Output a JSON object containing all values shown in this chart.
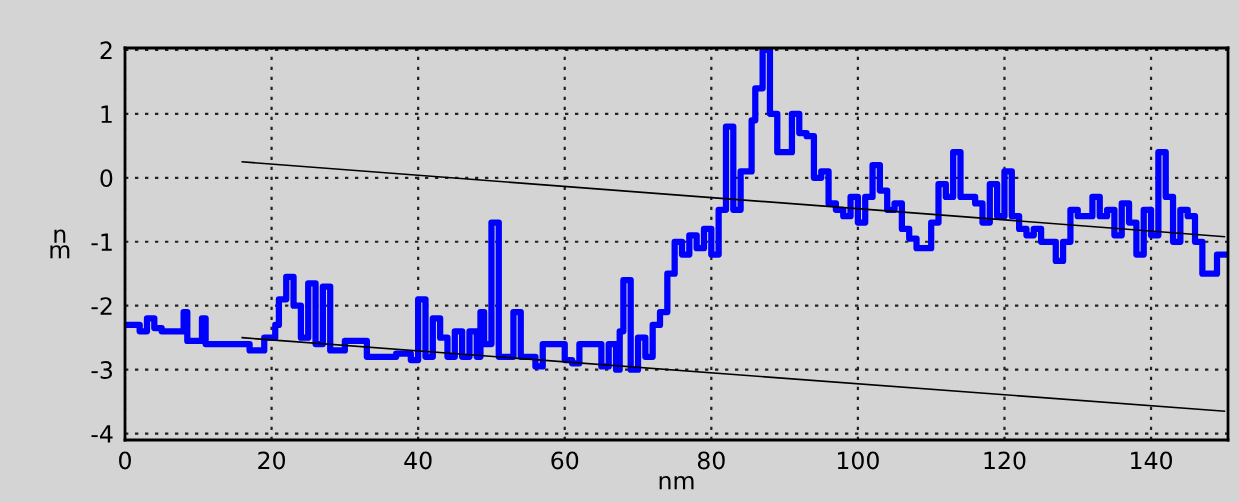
{
  "chart_data": {
    "type": "step",
    "xlabel": "nm",
    "ylabel": "nm",
    "xlim": [
      0,
      150.5
    ],
    "ylim": [
      -4.1,
      2.03
    ],
    "xticks": [
      0,
      20,
      40,
      60,
      80,
      100,
      120,
      140
    ],
    "yticks": [
      -4,
      -3,
      -2,
      -1,
      0,
      1,
      2
    ],
    "grid": true,
    "legend": false,
    "marker": "none",
    "series": [
      {
        "color": "#0000ff",
        "x": [
          0,
          2,
          3,
          4,
          5,
          7,
          8,
          8.5,
          9,
          10.5,
          11,
          12,
          15,
          17,
          19,
          20.5,
          21,
          22,
          23,
          24,
          25,
          26,
          27,
          28,
          30,
          33,
          37,
          39,
          40,
          41,
          42,
          43,
          44,
          45,
          46,
          47,
          48,
          48.5,
          49,
          50,
          51,
          52,
          53,
          54,
          56,
          57,
          59,
          60,
          61,
          62,
          64,
          65,
          66,
          67,
          67.5,
          68,
          69,
          70,
          71,
          72,
          73,
          74,
          75,
          76,
          77,
          78,
          79,
          80,
          81,
          82,
          83,
          84,
          85.5,
          86,
          87,
          88,
          89,
          90,
          91,
          92,
          93,
          94,
          95,
          96,
          97,
          98,
          99,
          100,
          101,
          102,
          103,
          104,
          105,
          106,
          107,
          108,
          110,
          111,
          112,
          113,
          114,
          116,
          117,
          118,
          119,
          120,
          121,
          122,
          123,
          124,
          125,
          127,
          128,
          129,
          130,
          132,
          133,
          134,
          135,
          136,
          137,
          138,
          139,
          140,
          141,
          142,
          143,
          144,
          145,
          146,
          147,
          148,
          149,
          150
        ],
        "values": [
          -2.3,
          -2.4,
          -2.2,
          -2.35,
          -2.4,
          -2.4,
          -2.1,
          -2.55,
          -2.55,
          -2.2,
          -2.6,
          -2.6,
          -2.6,
          -2.7,
          -2.5,
          -2.3,
          -1.9,
          -1.55,
          -2.0,
          -2.5,
          -1.65,
          -2.6,
          -1.7,
          -2.7,
          -2.55,
          -2.8,
          -2.75,
          -2.85,
          -1.9,
          -2.8,
          -2.2,
          -2.5,
          -2.8,
          -2.4,
          -2.8,
          -2.4,
          -2.8,
          -2.1,
          -2.6,
          -0.7,
          -2.8,
          -2.8,
          -2.1,
          -2.8,
          -2.95,
          -2.6,
          -2.6,
          -2.85,
          -2.9,
          -2.6,
          -2.6,
          -2.95,
          -2.6,
          -3.0,
          -2.4,
          -1.6,
          -3.0,
          -2.5,
          -2.8,
          -2.3,
          -2.1,
          -1.5,
          -1.0,
          -1.2,
          -0.9,
          -1.1,
          -0.8,
          -1.2,
          -0.5,
          0.8,
          -0.5,
          0.1,
          0.9,
          1.4,
          2.0,
          1.0,
          0.4,
          0.4,
          1.0,
          0.7,
          0.65,
          0.0,
          0.1,
          -0.4,
          -0.5,
          -0.6,
          -0.3,
          -0.7,
          -0.3,
          0.2,
          -0.2,
          -0.5,
          -0.4,
          -0.8,
          -0.95,
          -1.1,
          -0.7,
          -0.1,
          -0.3,
          0.4,
          -0.3,
          -0.4,
          -0.7,
          -0.1,
          -0.6,
          0.1,
          -0.6,
          -0.8,
          -0.9,
          -0.8,
          -1.0,
          -1.3,
          -1.0,
          -0.5,
          -0.6,
          -0.3,
          -0.6,
          -0.5,
          -0.9,
          -0.4,
          -0.7,
          -1.2,
          -0.5,
          -0.9,
          0.4,
          -0.3,
          -1.0,
          -0.5,
          -0.6,
          -1.0,
          -1.5,
          -1.5,
          -1.2,
          -1.2
        ]
      },
      {
        "type": "line",
        "color": "#000000",
        "x": [
          16,
          150
        ],
        "values": [
          0.25,
          -0.92
        ]
      },
      {
        "type": "line",
        "color": "#000000",
        "x": [
          16,
          150
        ],
        "values": [
          -2.5,
          -3.65
        ]
      }
    ]
  }
}
